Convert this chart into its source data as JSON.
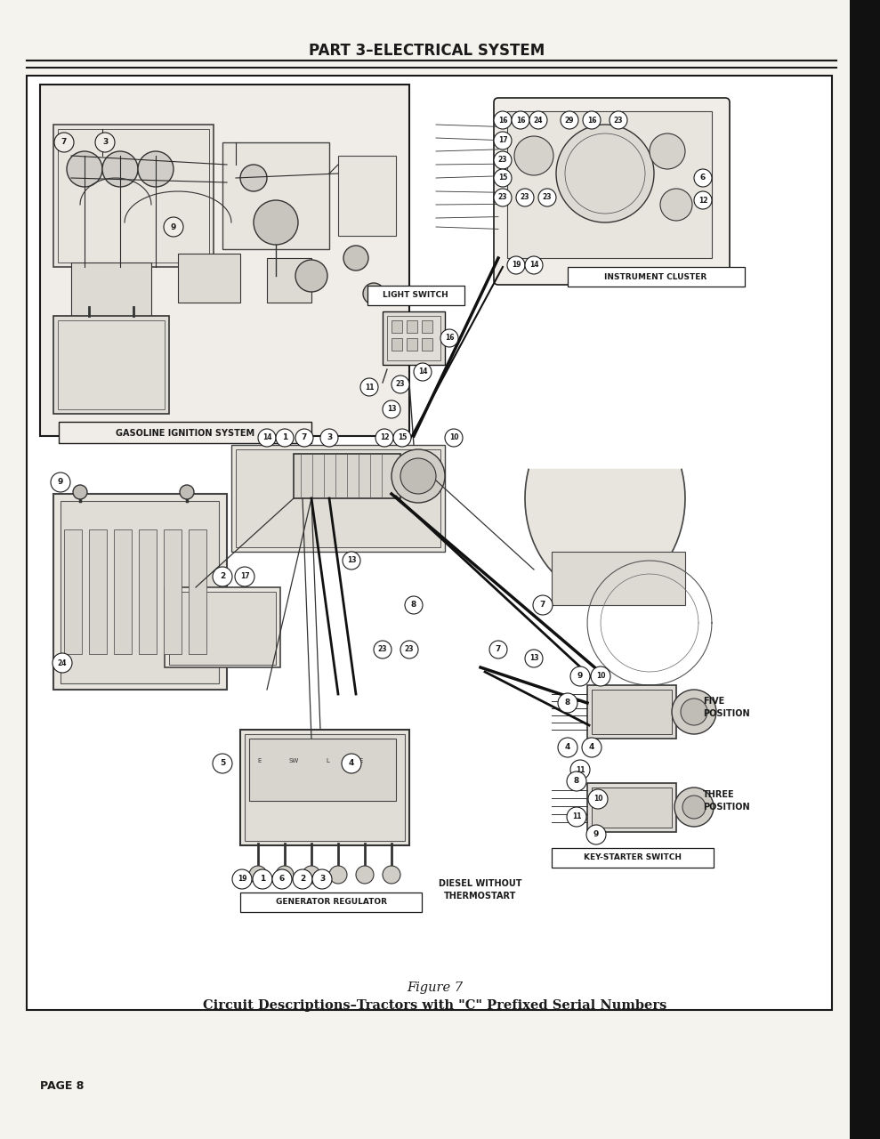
{
  "bg_color": "#f5f3ee",
  "page_bg": "#ffffff",
  "diagram_bg": "#ffffff",
  "title_text": "PART 3–ELECTRICAL SYSTEM",
  "figure_caption_line1": "Figure 7",
  "figure_caption_line2": "Circuit Descriptions–Tractors with \"C\" Prefixed Serial Numbers",
  "page_label": "PAGE 8",
  "text_color": "#1a1a1a",
  "title_font_size": 12,
  "caption_font_size": 10.5,
  "page_font_size": 9,
  "label_font_size": 6.5,
  "inset_label": "GASOLINE IGNITION SYSTEM",
  "label_instrument_cluster": "INSTRUMENT CLUSTER",
  "label_light_switch": "LIGHT SWITCH",
  "label_generator_regulator": "GENERATOR REGULATOR",
  "label_key_starter": "KEY-STARTER SWITCH",
  "label_diesel": "DIESEL WITHOUT\nTHERMOSTART",
  "label_five_position": "FIVE\nPOSITION",
  "label_three_position": "THREE\nPOSITION"
}
